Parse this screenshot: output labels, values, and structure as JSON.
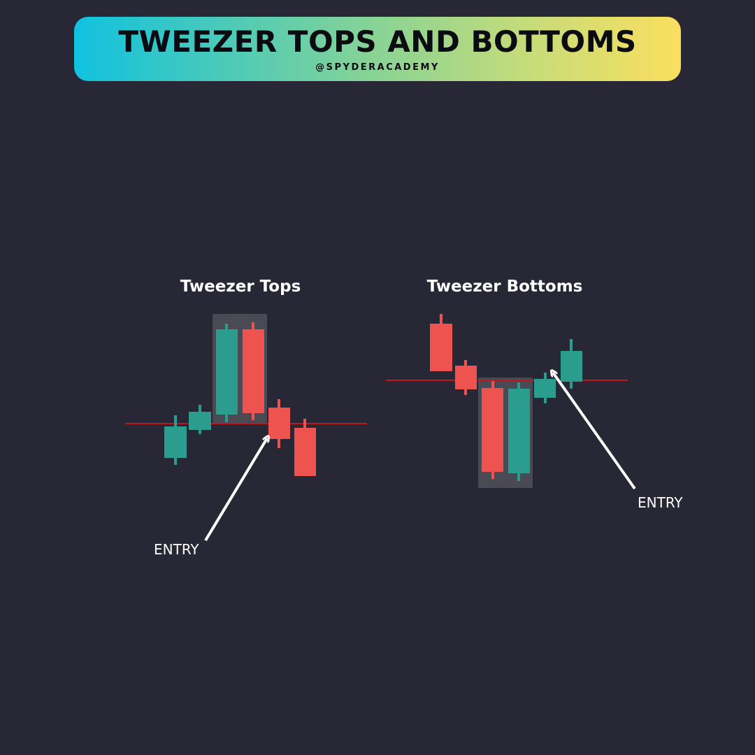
{
  "header": {
    "title": "TWEEZER TOPS AND BOTTOMS",
    "handle": "@SPYDERACADEMY"
  },
  "colors": {
    "background": "#272735",
    "bullish": "#2a9d8f",
    "bearish": "#ef5350",
    "level_line": "#c0161c",
    "highlight": "#4a4a55",
    "arrow": "#ffffff"
  },
  "panels": {
    "tops": {
      "title": "Tweezer Tops",
      "entry_label": "ENTRY"
    },
    "bottoms": {
      "title": "Tweezer Bottoms",
      "entry_label": "ENTRY"
    }
  }
}
